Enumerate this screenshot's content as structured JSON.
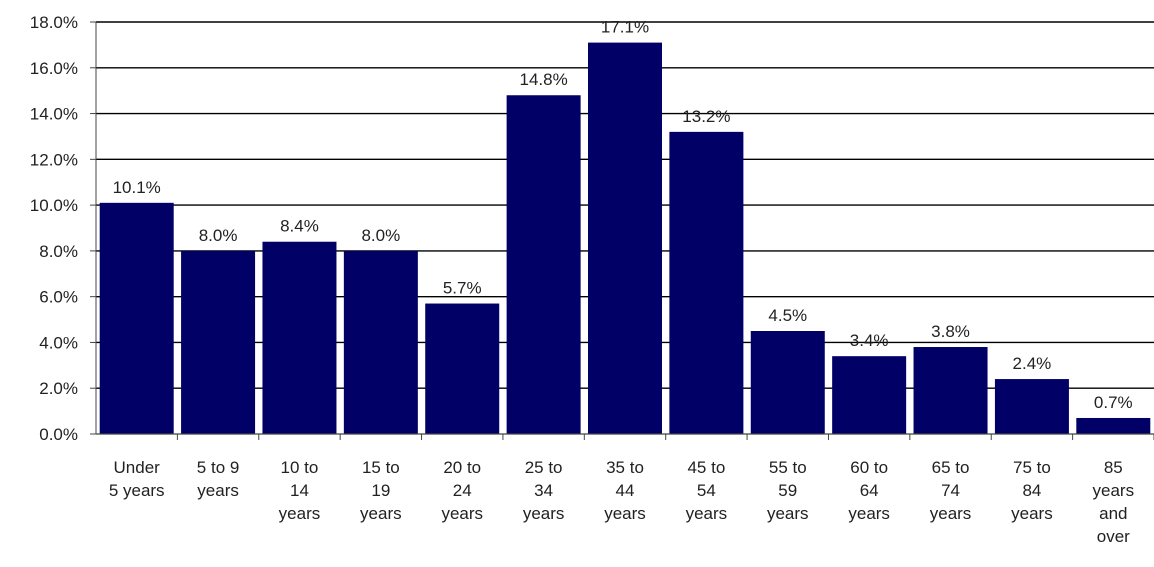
{
  "chart_data": {
    "type": "bar",
    "title": "",
    "xlabel": "",
    "ylabel": "",
    "categories": [
      [
        "Under",
        "5 years"
      ],
      [
        "5 to 9",
        "years"
      ],
      [
        "10 to",
        "14",
        "years"
      ],
      [
        "15 to",
        "19",
        "years"
      ],
      [
        "20 to",
        "24",
        "years"
      ],
      [
        "25 to",
        "34",
        "years"
      ],
      [
        "35 to",
        "44",
        "years"
      ],
      [
        "45 to",
        "54",
        "years"
      ],
      [
        "55 to",
        "59",
        "years"
      ],
      [
        "60 to",
        "64",
        "years"
      ],
      [
        "65 to",
        "74",
        "years"
      ],
      [
        "75 to",
        "84",
        "years"
      ],
      [
        "85",
        "years",
        "and",
        "over"
      ]
    ],
    "values": [
      10.1,
      8.0,
      8.4,
      8.0,
      5.7,
      14.8,
      17.1,
      13.2,
      4.5,
      3.4,
      3.8,
      2.4,
      0.7
    ],
    "data_labels": [
      "10.1%",
      "8.0%",
      "8.4%",
      "8.0%",
      "5.7%",
      "14.8%",
      "17.1%",
      "13.2%",
      "4.5%",
      "3.4%",
      "3.8%",
      "2.4%",
      "0.7%"
    ],
    "y_ticks": [
      0,
      2,
      4,
      6,
      8,
      10,
      12,
      14,
      16,
      18
    ],
    "y_tick_labels": [
      "0.0%",
      "2.0%",
      "4.0%",
      "6.0%",
      "8.0%",
      "10.0%",
      "12.0%",
      "14.0%",
      "16.0%",
      "18.0%"
    ],
    "ylim": [
      0,
      18
    ],
    "grid": true,
    "legend": "none",
    "colors": {
      "bar": "#000066",
      "grid": "#000000",
      "text": "#222222"
    }
  }
}
